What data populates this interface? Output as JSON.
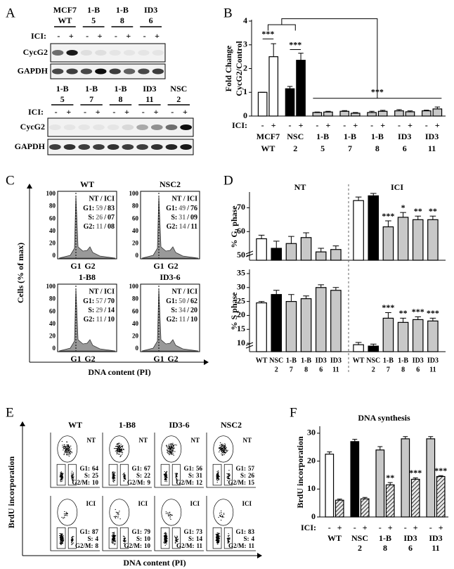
{
  "panel_letters": [
    "A",
    "B",
    "C",
    "D",
    "E",
    "F"
  ],
  "blots": [
    {
      "lanes": [
        [
          "MCF7",
          "WT"
        ],
        [
          "1-B",
          "5"
        ],
        [
          "1-B",
          "8"
        ],
        [
          "ID3",
          "6"
        ]
      ],
      "treatment_label": "ICI:",
      "treatment": [
        "-",
        "+"
      ],
      "rows": [
        "CycG2",
        "GAPDH"
      ]
    },
    {
      "lanes": [
        [
          "1-B",
          "5"
        ],
        [
          "1-B",
          "7"
        ],
        [
          "1-B",
          "8"
        ],
        [
          "ID3",
          "11"
        ],
        [
          "NSC",
          "2"
        ]
      ],
      "treatment_label": "ICI:",
      "treatment": [
        "-",
        "+"
      ],
      "rows": [
        "CycG2",
        "GAPDH"
      ]
    }
  ],
  "flow_histograms": {
    "ylabel": "Cells (% of max)",
    "xlabel": "DNA content (PI)",
    "yticks": [
      100,
      80,
      60,
      40,
      20,
      0
    ],
    "xticks": [
      "G1",
      "G2"
    ],
    "header": "NT / ICI",
    "plots": [
      {
        "title": "WT",
        "rows": [
          [
            "G1:",
            "59",
            "/",
            "83"
          ],
          [
            "S:",
            "26",
            "/",
            "07"
          ],
          [
            "G2:",
            "11",
            "/",
            "08"
          ]
        ]
      },
      {
        "title": "NSC2",
        "rows": [
          [
            "G1:",
            "49",
            "/",
            "76"
          ],
          [
            "S:",
            "31",
            "/",
            "09"
          ],
          [
            "G2:",
            "14",
            "/",
            "11"
          ]
        ]
      },
      {
        "title": "1-B8",
        "rows": [
          [
            "G1:",
            "57",
            "/",
            "70"
          ],
          [
            "S:",
            "29",
            "/",
            "14"
          ],
          [
            "G2:",
            "11",
            "/",
            "10"
          ]
        ]
      },
      {
        "title": "ID3-6",
        "rows": [
          [
            "G1:",
            "50",
            "/",
            "62"
          ],
          [
            "S:",
            "34",
            "/",
            "20"
          ],
          [
            "G2:",
            "11",
            "/",
            "10"
          ]
        ]
      }
    ]
  },
  "flow_scatter": {
    "ylabel": "BrdU incorporation",
    "xlabel": "DNA content (PI)",
    "columns": [
      "WT",
      "1-B8",
      "ID3-6",
      "NSC2"
    ],
    "rows": [
      {
        "label": "NT",
        "stats": [
          [
            [
              "G1:",
              64
            ],
            [
              "S:",
              25
            ],
            [
              "G2/M:",
              10
            ]
          ],
          [
            [
              "G1:",
              67
            ],
            [
              "S:",
              22
            ],
            [
              "G2/M:",
              9
            ]
          ],
          [
            [
              "G1:",
              56
            ],
            [
              "S:",
              31
            ],
            [
              "G2/M:",
              12
            ]
          ],
          [
            [
              "G1:",
              57
            ],
            [
              "S:",
              26
            ],
            [
              "G2/M:",
              15
            ]
          ]
        ]
      },
      {
        "label": "ICI",
        "stats": [
          [
            [
              "G1:",
              87
            ],
            [
              "S:",
              4
            ],
            [
              "G2/M:",
              8
            ]
          ],
          [
            [
              "G1:",
              79
            ],
            [
              "S:",
              10
            ],
            [
              "G2/M:",
              10
            ]
          ],
          [
            [
              "G1:",
              73
            ],
            [
              "S:",
              14
            ],
            [
              "G2/M:",
              11
            ]
          ],
          [
            [
              "G1:",
              83
            ],
            [
              "S:",
              4
            ],
            [
              "G2/M:",
              11
            ]
          ]
        ]
      }
    ]
  },
  "chart_data": [
    {
      "type": "bar",
      "ylabel": [
        "Fold Change",
        "CycG2/Control"
      ],
      "ylim": [
        0,
        4
      ],
      "yticks": [
        0,
        1,
        2,
        3,
        4
      ],
      "group_label": "ICI:",
      "categories": [
        [
          "MCF7",
          "WT"
        ],
        [
          "NSC",
          "2"
        ],
        [
          "1-B",
          "5"
        ],
        [
          "1-B",
          "7"
        ],
        [
          "1-B",
          "8"
        ],
        [
          "ID3",
          "6"
        ],
        [
          "ID3",
          "11"
        ]
      ],
      "category_colors": [
        "#ffffff",
        "#000000",
        "#c8c8c8",
        "#c8c8c8",
        "#c8c8c8",
        "#c8c8c8",
        "#c8c8c8"
      ],
      "series": [
        {
          "name": "-",
          "values": [
            1.0,
            1.15,
            0.15,
            0.2,
            0.15,
            0.22,
            0.22
          ],
          "errors": [
            0,
            0.1,
            0.02,
            0.03,
            0.05,
            0.05,
            0.03
          ]
        },
        {
          "name": "+",
          "values": [
            2.5,
            2.35,
            0.17,
            0.12,
            0.2,
            0.18,
            0.3
          ],
          "errors": [
            0.55,
            0.3,
            0.03,
            0.03,
            0.04,
            0.04,
            0.08
          ]
        }
      ],
      "annotations": [
        "***",
        "***",
        "***"
      ]
    },
    {
      "type": "bar",
      "ylabel": "% G₁ phase",
      "ylim": [
        48,
        76
      ],
      "yticks": [
        50,
        60,
        70
      ],
      "category_colors": [
        "#ffffff",
        "#000000",
        "#c8c8c8",
        "#c8c8c8",
        "#c8c8c8",
        "#c8c8c8"
      ],
      "series": [
        {
          "name": "NT",
          "values": [
            57,
            53,
            55,
            57.5,
            51.5,
            52.5
          ],
          "errors": [
            1.5,
            3,
            3,
            2,
            1.5,
            1.5
          ],
          "stars": [
            null,
            null,
            null,
            null,
            null,
            null
          ]
        },
        {
          "name": "ICI",
          "values": [
            73,
            75,
            62,
            66,
            65,
            65
          ],
          "errors": [
            1.5,
            1,
            2.5,
            2,
            1.5,
            1.5
          ],
          "stars": [
            null,
            null,
            "***",
            "*",
            "**",
            "**"
          ]
        }
      ]
    },
    {
      "type": "bar",
      "ylabel": "% S phase",
      "ylim": [
        7,
        36
      ],
      "yticks": [
        10,
        15,
        20,
        25,
        30,
        35
      ],
      "categories": [
        [
          "WT"
        ],
        [
          "NSC",
          "2"
        ],
        [
          "1-B",
          "7"
        ],
        [
          "1-B",
          "8"
        ],
        [
          "ID3",
          "6"
        ],
        [
          "ID3",
          "11"
        ]
      ],
      "category_colors": [
        "#ffffff",
        "#000000",
        "#c8c8c8",
        "#c8c8c8",
        "#c8c8c8",
        "#c8c8c8"
      ],
      "series": [
        {
          "values": [
            24.5,
            27.5,
            25,
            26,
            30,
            29
          ],
          "errors": [
            0.5,
            1.5,
            2.5,
            1,
            1,
            1
          ],
          "stars": [
            null,
            null,
            null,
            null,
            null,
            null
          ]
        },
        {
          "values": [
            9.5,
            9,
            19,
            17.5,
            18.5,
            18
          ],
          "errors": [
            0.8,
            0.7,
            2,
            1.5,
            1,
            1
          ],
          "stars": [
            null,
            null,
            "***",
            "**",
            "***",
            "***"
          ]
        }
      ]
    },
    {
      "type": "bar",
      "title": "DNA synthesis",
      "ylabel": "BrdU incorporation",
      "ylim": [
        0,
        32
      ],
      "yticks": [
        0,
        10,
        20,
        30
      ],
      "group_label": "ICI:",
      "categories": [
        [
          "WT"
        ],
        [
          "NSC",
          "2"
        ],
        [
          "1-B",
          "8"
        ],
        [
          "ID3",
          "6"
        ],
        [
          "ID3",
          "11"
        ]
      ],
      "category_colors": [
        "#ffffff",
        "#000000",
        "#c8c8c8",
        "#c8c8c8",
        "#c8c8c8"
      ],
      "series": [
        {
          "name": "-",
          "values": [
            22.5,
            27,
            24,
            28,
            28
          ],
          "errors": [
            0.8,
            0.8,
            1.2,
            0.8,
            0.8
          ],
          "stars": [
            null,
            null,
            null,
            null,
            null
          ]
        },
        {
          "name": "+",
          "values": [
            6,
            6.5,
            11.5,
            13.5,
            14.5
          ],
          "errors": [
            0.4,
            0.5,
            0.8,
            0.5,
            0.3
          ],
          "stars": [
            null,
            null,
            "**",
            "***",
            "***"
          ],
          "hatched": true
        }
      ]
    }
  ]
}
